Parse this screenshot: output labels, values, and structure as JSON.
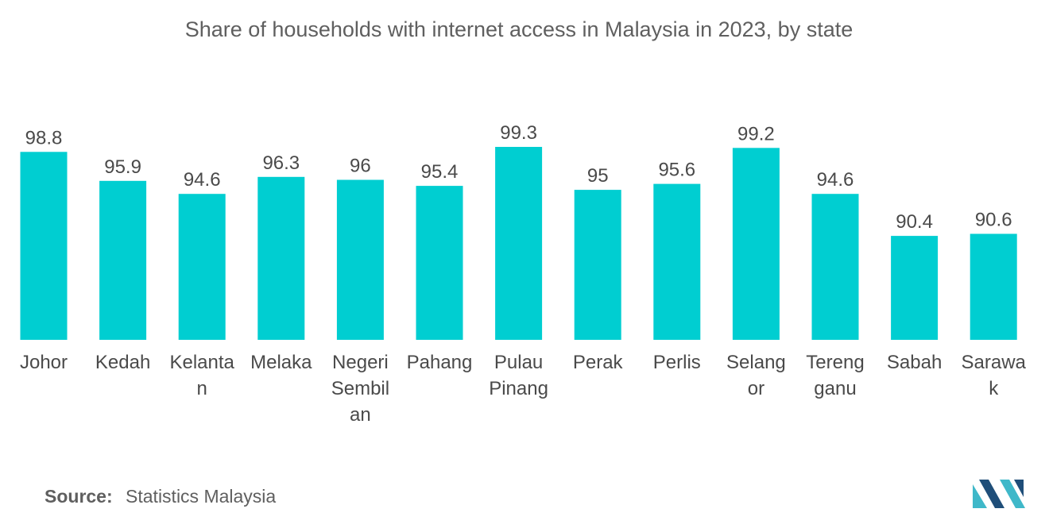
{
  "title": "Share of households with internet access in Malaysia in 2023, by state",
  "source": {
    "label": "Source:",
    "value": "Statistics Malaysia"
  },
  "colors": {
    "bar": "#00CED1",
    "logo_dark": "#1f4e79",
    "logo_light": "#3fb8c9"
  },
  "chart_data": {
    "type": "bar",
    "categories": [
      "Johor",
      "Kedah",
      "Kelantan",
      "Melaka",
      "Negeri Sembilan",
      "Pahang",
      "Pulau Pinang",
      "Perak",
      "Perlis",
      "Selangor",
      "Terengganu",
      "Sabah",
      "Sarawak"
    ],
    "category_label_lines": [
      [
        "Johor"
      ],
      [
        "Kedah"
      ],
      [
        "Kelanta",
        "n"
      ],
      [
        "Melaka"
      ],
      [
        "Negeri",
        "Sembil",
        "an"
      ],
      [
        "Pahang"
      ],
      [
        "Pulau",
        "Pinang"
      ],
      [
        "Perak"
      ],
      [
        "Perlis"
      ],
      [
        "Selang",
        "or"
      ],
      [
        "Tereng",
        "ganu"
      ],
      [
        "Sabah"
      ],
      [
        "Sarawa",
        "k"
      ]
    ],
    "values": [
      98.8,
      95.9,
      94.6,
      96.3,
      96,
      95.4,
      99.3,
      95,
      95.6,
      99.2,
      94.6,
      90.4,
      90.6
    ],
    "value_labels": [
      "98.8",
      "95.9",
      "94.6",
      "96.3",
      "96",
      "95.4",
      "99.3",
      "95",
      "95.6",
      "99.2",
      "94.6",
      "90.4",
      "90.6"
    ],
    "title": "Share of households with internet access in Malaysia in 2023, by state",
    "xlabel": "",
    "ylabel": "",
    "grid": false,
    "legend": "none"
  }
}
